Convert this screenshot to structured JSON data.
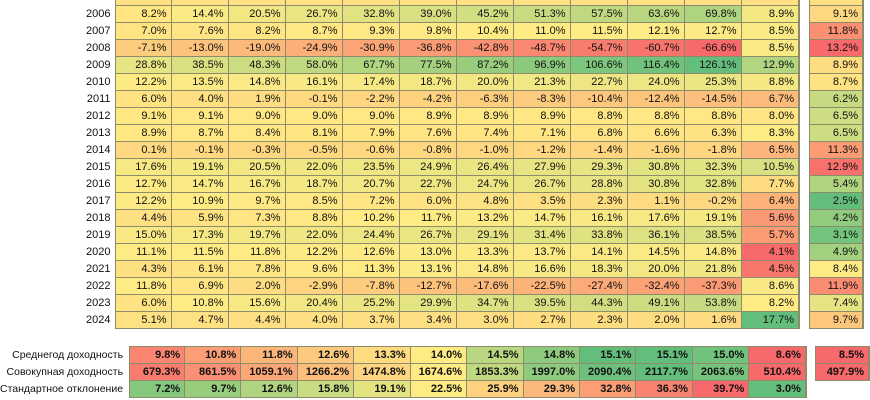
{
  "years": [
    "2006",
    "2007",
    "2008",
    "2009",
    "2010",
    "2011",
    "2012",
    "2013",
    "2014",
    "2015",
    "2016",
    "2017",
    "2018",
    "2019",
    "2020",
    "2021",
    "2022",
    "2023",
    "2024"
  ],
  "rows": [
    [
      "8.2%",
      "14.4%",
      "20.5%",
      "26.7%",
      "32.8%",
      "39.0%",
      "45.2%",
      "51.3%",
      "57.5%",
      "63.6%",
      "69.8%",
      "8.9%",
      "9.1%"
    ],
    [
      "7.0%",
      "7.6%",
      "8.2%",
      "8.7%",
      "9.3%",
      "9.8%",
      "10.4%",
      "11.0%",
      "11.5%",
      "12.1%",
      "12.7%",
      "8.5%",
      "11.8%"
    ],
    [
      "-7.1%",
      "-13.0%",
      "-19.0%",
      "-24.9%",
      "-30.9%",
      "-36.8%",
      "-42.8%",
      "-48.7%",
      "-54.7%",
      "-60.7%",
      "-66.6%",
      "8.5%",
      "13.2%"
    ],
    [
      "28.8%",
      "38.5%",
      "48.3%",
      "58.0%",
      "67.7%",
      "77.5%",
      "87.2%",
      "96.9%",
      "106.6%",
      "116.4%",
      "126.1%",
      "12.9%",
      "8.9%"
    ],
    [
      "12.2%",
      "13.5%",
      "14.8%",
      "16.1%",
      "17.4%",
      "18.7%",
      "20.0%",
      "21.3%",
      "22.7%",
      "24.0%",
      "25.3%",
      "8.8%",
      "8.7%"
    ],
    [
      "6.0%",
      "4.0%",
      "1.9%",
      "-0.1%",
      "-2.2%",
      "-4.2%",
      "-6.3%",
      "-8.3%",
      "-10.4%",
      "-12.4%",
      "-14.5%",
      "6.7%",
      "6.2%"
    ],
    [
      "9.1%",
      "9.1%",
      "9.0%",
      "9.0%",
      "9.0%",
      "8.9%",
      "8.9%",
      "8.9%",
      "8.8%",
      "8.8%",
      "8.8%",
      "8.0%",
      "6.5%"
    ],
    [
      "8.9%",
      "8.7%",
      "8.4%",
      "8.1%",
      "7.9%",
      "7.6%",
      "7.4%",
      "7.1%",
      "6.8%",
      "6.6%",
      "6.3%",
      "8.3%",
      "6.5%"
    ],
    [
      "0.1%",
      "-0.1%",
      "-0.3%",
      "-0.5%",
      "-0.6%",
      "-0.8%",
      "-1.0%",
      "-1.2%",
      "-1.4%",
      "-1.6%",
      "-1.8%",
      "6.5%",
      "11.3%"
    ],
    [
      "17.6%",
      "19.1%",
      "20.5%",
      "22.0%",
      "23.5%",
      "24.9%",
      "26.4%",
      "27.9%",
      "29.3%",
      "30.8%",
      "32.3%",
      "10.5%",
      "12.9%"
    ],
    [
      "12.7%",
      "14.7%",
      "16.7%",
      "18.7%",
      "20.7%",
      "22.7%",
      "24.7%",
      "26.7%",
      "28.8%",
      "30.8%",
      "32.8%",
      "7.7%",
      "5.4%"
    ],
    [
      "12.2%",
      "10.9%",
      "9.7%",
      "8.5%",
      "7.2%",
      "6.0%",
      "4.8%",
      "3.5%",
      "2.3%",
      "1.1%",
      "-0.2%",
      "6.4%",
      "2.5%"
    ],
    [
      "4.4%",
      "5.9%",
      "7.3%",
      "8.8%",
      "10.2%",
      "11.7%",
      "13.2%",
      "14.7%",
      "16.1%",
      "17.6%",
      "19.1%",
      "5.6%",
      "4.2%"
    ],
    [
      "15.0%",
      "17.3%",
      "19.7%",
      "22.0%",
      "24.4%",
      "26.7%",
      "29.1%",
      "31.4%",
      "33.8%",
      "36.1%",
      "38.5%",
      "5.7%",
      "3.1%"
    ],
    [
      "11.1%",
      "11.5%",
      "11.8%",
      "12.2%",
      "12.6%",
      "13.0%",
      "13.3%",
      "13.7%",
      "14.1%",
      "14.5%",
      "14.8%",
      "4.1%",
      "4.9%"
    ],
    [
      "4.3%",
      "6.1%",
      "7.8%",
      "9.6%",
      "11.3%",
      "13.1%",
      "14.8%",
      "16.6%",
      "18.3%",
      "20.0%",
      "21.8%",
      "4.5%",
      "8.4%"
    ],
    [
      "11.8%",
      "6.9%",
      "2.0%",
      "-2.9%",
      "-7.8%",
      "-12.7%",
      "-17.6%",
      "-22.5%",
      "-27.4%",
      "-32.4%",
      "-37.3%",
      "8.6%",
      "11.9%"
    ],
    [
      "6.0%",
      "10.8%",
      "15.6%",
      "20.4%",
      "25.2%",
      "29.9%",
      "34.7%",
      "39.5%",
      "44.3%",
      "49.1%",
      "53.8%",
      "8.2%",
      "7.4%"
    ],
    [
      "5.1%",
      "4.7%",
      "4.4%",
      "4.0%",
      "3.7%",
      "3.4%",
      "3.0%",
      "2.7%",
      "2.3%",
      "2.0%",
      "1.6%",
      "17.7%",
      "9.7%"
    ]
  ],
  "summary": [
    {
      "label": "Среднегод доходность",
      "values": [
        "9.8%",
        "10.8%",
        "11.8%",
        "12.6%",
        "13.3%",
        "14.0%",
        "14.5%",
        "14.8%",
        "15.1%",
        "15.1%",
        "15.0%",
        "8.6%",
        "8.5%"
      ]
    },
    {
      "label": "Совокупная доходность",
      "values": [
        "679.3%",
        "861.5%",
        "1059.1%",
        "1266.2%",
        "1474.8%",
        "1674.6%",
        "1853.3%",
        "1997.0%",
        "2090.4%",
        "2117.7%",
        "2063.6%",
        "510.4%",
        "497.9%"
      ]
    },
    {
      "label": "Стандартное отклонение",
      "values": [
        "7.2%",
        "9.7%",
        "12.6%",
        "15.8%",
        "19.1%",
        "22.5%",
        "25.9%",
        "29.3%",
        "32.8%",
        "36.3%",
        "39.7%",
        "3.0%",
        ""
      ]
    }
  ],
  "colors": {
    "red": "#f8696b",
    "yellow": "#ffeb84",
    "green": "#63be7b"
  }
}
